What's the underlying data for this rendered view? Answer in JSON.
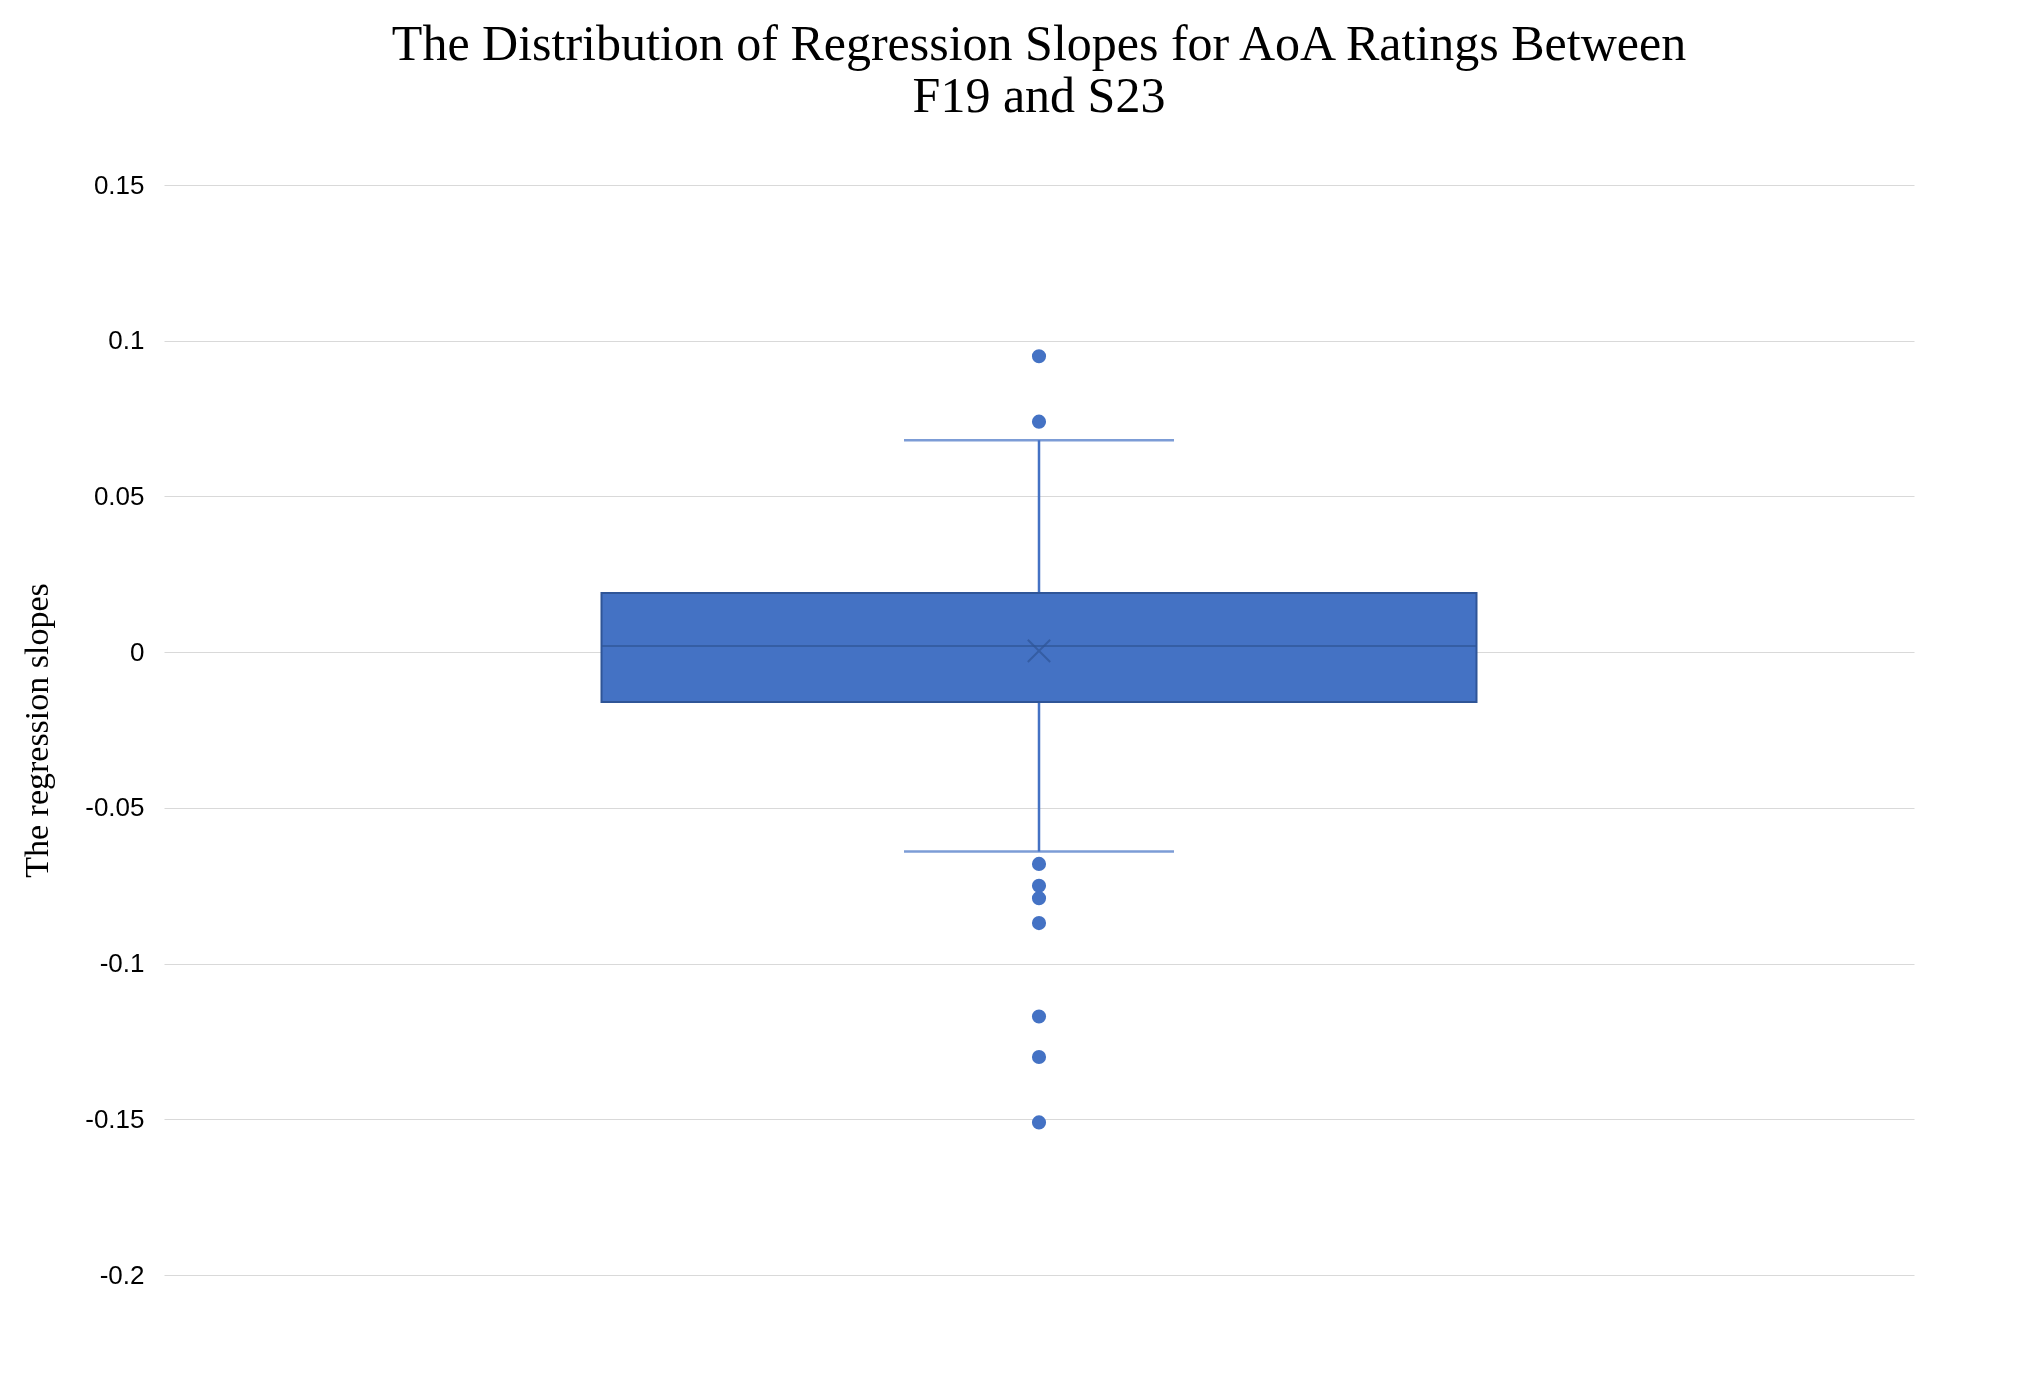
{
  "chart_data": {
    "type": "box",
    "title": "The Distribution of Regression Slopes for AoA Ratings Between F19 and S23",
    "ylabel": "The regression slopes",
    "categories": [
      null
    ],
    "series": [
      {
        "color": "#4472c4",
        "boxes": [
          {
            "low": -0.064,
            "q1": -0.016,
            "median": 0.002,
            "q3": 0.019,
            "high": 0.068,
            "mean": 0.0004,
            "outliers": [
              0.095,
              0.074,
              -0.068,
              -0.075,
              -0.079,
              -0.087,
              -0.117,
              -0.13,
              -0.151
            ]
          }
        ]
      }
    ],
    "ylim": [
      -0.2,
      0.15
    ],
    "yticks": [
      -0.2,
      -0.15,
      -0.1,
      -0.05,
      0,
      0.05,
      0.1,
      0.15
    ],
    "grid": "y",
    "tick_labels": "y",
    "marker": "circle"
  }
}
